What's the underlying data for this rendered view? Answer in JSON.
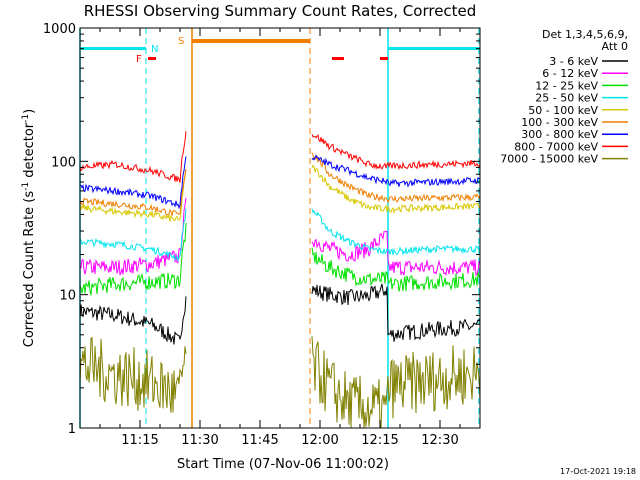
{
  "chart_data": {
    "type": "line",
    "title": "RHESSI Observing Summary Count Rates, Corrected",
    "xlabel": "Start Time (07-Nov-06 11:00:02)",
    "ylabel_main": "Corrected Count Rate (s",
    "ylabel_sup1": "-1",
    "ylabel_mid": " detector",
    "ylabel_sup2": "-1",
    "ylabel_end": ")",
    "yscale": "log",
    "ylim": [
      1,
      1000
    ],
    "xlim_minutes": [
      0,
      100
    ],
    "x_ticks": [
      {
        "minute": 15,
        "label": "11:15"
      },
      {
        "minute": 30,
        "label": "11:30"
      },
      {
        "minute": 45,
        "label": "11:45"
      },
      {
        "minute": 60,
        "label": "12:00"
      },
      {
        "minute": 75,
        "label": "12:15"
      },
      {
        "minute": 90,
        "label": "12:30"
      }
    ],
    "y_ticks": [
      {
        "value": 1,
        "label": "1"
      },
      {
        "value": 10,
        "label": "10"
      },
      {
        "value": 100,
        "label": "100"
      },
      {
        "value": 1000,
        "label": "1000"
      }
    ],
    "legend_header": [
      "Det 1,3,4,5,6,9,",
      "Att 0"
    ],
    "legend_position": "right",
    "flags": {
      "night_label": "N",
      "saa_label": "S",
      "flare_label": "F",
      "night_color": "#00e5ee",
      "saa_color": "#f07f00",
      "flare_color": "#ff0000",
      "night_bars": [
        [
          0,
          16.5
        ],
        [
          77,
          100
        ]
      ],
      "saa_bars": [
        [
          28,
          57.5
        ]
      ],
      "flare_bars": [
        [
          17,
          19
        ],
        [
          63,
          66
        ],
        [
          75,
          77
        ]
      ],
      "solid_lines": [
        {
          "minute": 0,
          "color": "#00e5ee"
        },
        {
          "minute": 77,
          "color": "#00e5ee"
        },
        {
          "minute": 28,
          "color": "#f07f00"
        }
      ],
      "dashed_lines": [
        {
          "minute": 16.5,
          "color": "#00e5ee"
        },
        {
          "minute": 57.5,
          "color": "#f07f00"
        },
        {
          "minute": 99.7,
          "color": "#00e5ee"
        }
      ]
    },
    "segments": [
      [
        0,
        26.5
      ],
      [
        57.5,
        100
      ]
    ],
    "series": [
      {
        "name": "3 - 6 keV",
        "color": "#000000",
        "pre": [
          7.5,
          7.0,
          6.0,
          4.0
        ],
        "post": [
          11,
          10,
          9.5,
          9.8,
          11
        ],
        "late": [
          5.0,
          5.5,
          5.8
        ]
      },
      {
        "name": "6 - 12 keV",
        "color": "#ff00ff",
        "pre": [
          16,
          16,
          17,
          20
        ],
        "post": [
          27,
          22,
          20,
          22,
          28
        ],
        "late": [
          16,
          16,
          16
        ]
      },
      {
        "name": "12 - 25 keV",
        "color": "#00e000",
        "pre": [
          11,
          12,
          12.5,
          13
        ],
        "post": [
          20,
          16,
          14,
          13,
          13
        ],
        "late": [
          12,
          12.5,
          13
        ]
      },
      {
        "name": "25 - 50 keV",
        "color": "#00e5ee",
        "pre": [
          25,
          24,
          22,
          18
        ],
        "post": [
          45,
          30,
          25,
          22,
          21
        ],
        "late": [
          21,
          22,
          22
        ]
      },
      {
        "name": "50 - 100 keV",
        "color": "#d8c800",
        "pre": [
          45,
          42,
          40,
          35
        ],
        "post": [
          95,
          65,
          52,
          45,
          44
        ],
        "late": [
          44,
          45,
          46
        ]
      },
      {
        "name": "100 - 300 keV",
        "color": "#f07f00",
        "pre": [
          50,
          48,
          45,
          38
        ],
        "post": [
          120,
          80,
          65,
          55,
          53
        ],
        "late": [
          52,
          53,
          54
        ]
      },
      {
        "name": "300 - 800 keV",
        "color": "#0000ff",
        "pre": [
          63,
          60,
          55,
          45
        ],
        "post": [
          110,
          95,
          85,
          75,
          70
        ],
        "late": [
          68,
          70,
          72
        ]
      },
      {
        "name": "800 - 7000 keV",
        "color": "#ff0000",
        "pre": [
          90,
          95,
          85,
          70
        ],
        "post": [
          165,
          130,
          110,
          95,
          90
        ],
        "late": [
          92,
          95,
          97
        ]
      },
      {
        "name": "7000 - 15000 keV",
        "color": "#808000",
        "pre": [
          3.0,
          2.5,
          2.2,
          1.6
        ],
        "post": [
          3.0,
          2.0,
          1.5,
          1.4,
          1.3
        ],
        "late": [
          2.0,
          2.3,
          2.6
        ]
      }
    ]
  },
  "footer": {
    "timestamp": "17-Oct-2021 19:18"
  }
}
